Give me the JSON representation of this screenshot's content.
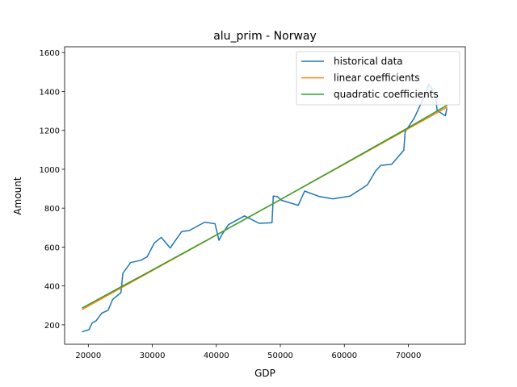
{
  "chart_data": {
    "type": "line",
    "title": "alu_prim - Norway",
    "xlabel": "GDP",
    "ylabel": "Amount",
    "xlim": [
      16300,
      78900
    ],
    "ylim": [
      100,
      1630
    ],
    "xticks": [
      20000,
      30000,
      40000,
      50000,
      60000,
      70000
    ],
    "xtick_labels": [
      "20000",
      "30000",
      "40000",
      "50000",
      "60000",
      "70000"
    ],
    "yticks": [
      200,
      400,
      600,
      800,
      1000,
      1200,
      1400,
      1600
    ],
    "ytick_labels": [
      "200",
      "400",
      "600",
      "800",
      "1000",
      "1200",
      "1400",
      "1600"
    ],
    "grid": false,
    "legend_position": "upper right",
    "series": [
      {
        "name": "historical data",
        "color": "#1f77b4",
        "x": [
          19100,
          20100,
          20600,
          21200,
          22100,
          23100,
          23800,
          25100,
          25400,
          26600,
          28200,
          29200,
          30300,
          31400,
          32800,
          34600,
          35800,
          38200,
          39800,
          40400,
          40900,
          41900,
          44400,
          46700,
          48700,
          48900,
          49500,
          50200,
          52800,
          53800,
          56100,
          58200,
          60900,
          63600,
          64900,
          65700,
          67400,
          69300,
          69500,
          70900,
          72300,
          73200,
          73600,
          74300,
          74500,
          75800,
          76000
        ],
        "y": [
          165,
          175,
          210,
          220,
          260,
          275,
          330,
          365,
          465,
          520,
          532,
          550,
          620,
          650,
          595,
          680,
          685,
          728,
          720,
          635,
          665,
          715,
          760,
          722,
          725,
          862,
          860,
          840,
          815,
          888,
          860,
          848,
          862,
          920,
          992,
          1020,
          1026,
          1098,
          1192,
          1262,
          1360,
          1437,
          1418,
          1365,
          1302,
          1275,
          1310
        ]
      },
      {
        "name": "linear coefficients",
        "color": "#ff7f0e",
        "x": [
          19100,
          76000
        ],
        "y": [
          280,
          1318
        ]
      },
      {
        "name": "quadratic coefficients",
        "color": "#2ca02c",
        "x": [
          19100,
          25000,
          30000,
          40000,
          50000,
          60000,
          70000,
          76000
        ],
        "y": [
          288,
          393,
          482,
          662,
          844,
          1028,
          1214,
          1328
        ]
      }
    ]
  }
}
